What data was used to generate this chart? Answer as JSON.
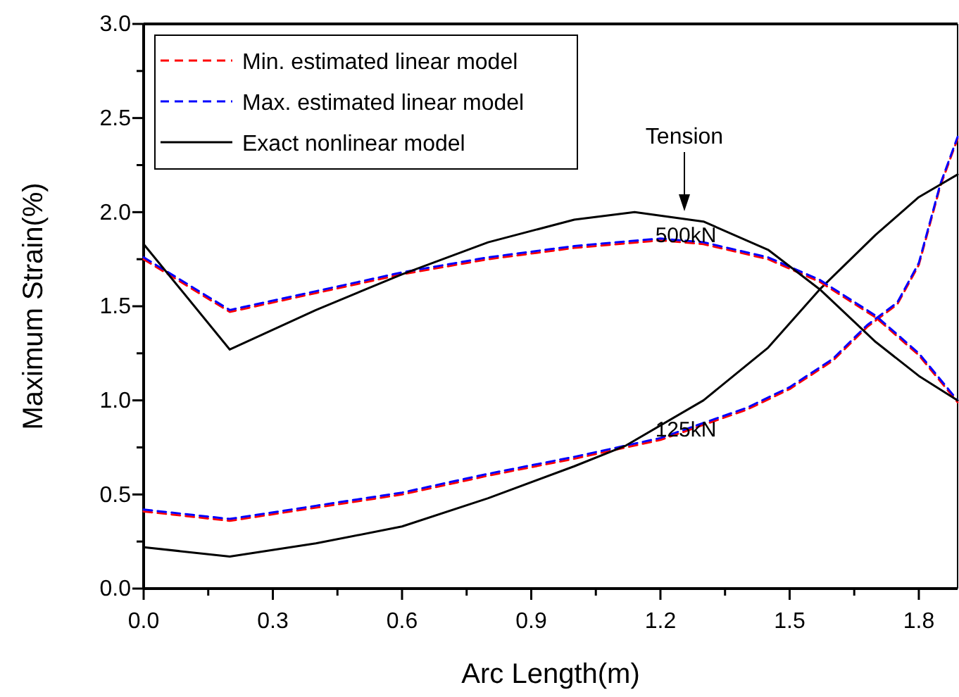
{
  "chart_data": {
    "type": "line",
    "xlabel": "Arc Length(m)",
    "ylabel": "Maximum Strain(%)",
    "xlim": [
      0,
      1.89
    ],
    "ylim": [
      0,
      3
    ],
    "xticks": [
      {
        "value": 0,
        "label": "0.0"
      },
      {
        "value": 0.15,
        "label": null
      },
      {
        "value": 0.3,
        "label": "0.3"
      },
      {
        "value": 0.45,
        "label": null
      },
      {
        "value": 0.6,
        "label": "0.6"
      },
      {
        "value": 0.75,
        "label": null
      },
      {
        "value": 0.9,
        "label": "0.9"
      },
      {
        "value": 1.05,
        "label": null
      },
      {
        "value": 1.2,
        "label": "1.2"
      },
      {
        "value": 1.35,
        "label": null
      },
      {
        "value": 1.5,
        "label": "1.5"
      },
      {
        "value": 1.65,
        "label": null
      },
      {
        "value": 1.8,
        "label": "1.8"
      }
    ],
    "yticks": [
      {
        "value": 0,
        "label": "0.0"
      },
      {
        "value": 0.25,
        "label": null
      },
      {
        "value": 0.5,
        "label": "0.5"
      },
      {
        "value": 0.75,
        "label": null
      },
      {
        "value": 1,
        "label": "1.0"
      },
      {
        "value": 1.25,
        "label": null
      },
      {
        "value": 1.5,
        "label": "1.5"
      },
      {
        "value": 1.75,
        "label": null
      },
      {
        "value": 2,
        "label": "2.0"
      },
      {
        "value": 2.25,
        "label": null
      },
      {
        "value": 2.5,
        "label": "2.5"
      },
      {
        "value": 2.75,
        "label": null
      },
      {
        "value": 3,
        "label": "3.0"
      }
    ],
    "legend": "top left",
    "grid": false,
    "marker": "none",
    "series": [
      {
        "name": "Min. estimated linear model",
        "color": "#ff0000",
        "line_style": "dashed",
        "x": [
          0,
          0.2,
          0.4,
          0.6,
          0.8,
          1.0,
          1.2,
          1.4,
          1.5,
          1.6,
          1.68,
          1.75,
          1.8,
          1.85,
          1.89
        ],
        "values": [
          0.41,
          0.36,
          0.43,
          0.5,
          0.6,
          0.69,
          0.79,
          0.95,
          1.06,
          1.21,
          1.39,
          1.51,
          1.72,
          2.14,
          2.39
        ]
      },
      {
        "name": "Max. estimated linear model",
        "color": "#0000ff",
        "line_style": "dashed",
        "x": [
          0,
          0.2,
          0.4,
          0.6,
          0.8,
          1.0,
          1.2,
          1.4,
          1.5,
          1.6,
          1.68,
          1.75,
          1.8,
          1.85,
          1.89
        ],
        "values": [
          0.42,
          0.37,
          0.44,
          0.51,
          0.61,
          0.7,
          0.8,
          0.96,
          1.07,
          1.22,
          1.4,
          1.52,
          1.73,
          2.15,
          2.4
        ]
      },
      {
        "name": "Exact nonlinear model",
        "color": "#000000",
        "line_style": "solid",
        "x": [
          0,
          0.2,
          0.4,
          0.6,
          0.8,
          1.0,
          1.12,
          1.3,
          1.45,
          1.57,
          1.7,
          1.8,
          1.89
        ],
        "values": [
          0.22,
          0.17,
          0.24,
          0.33,
          0.48,
          0.65,
          0.76,
          1.0,
          1.28,
          1.59,
          1.88,
          2.08,
          2.2
        ]
      },
      {
        "color": "#ff0000",
        "line_style": "dashed",
        "x": [
          0,
          0.2,
          0.4,
          0.6,
          0.8,
          1.0,
          1.2,
          1.3,
          1.45,
          1.57,
          1.7,
          1.8,
          1.89
        ],
        "values": [
          1.75,
          1.47,
          1.57,
          1.67,
          1.75,
          1.81,
          1.85,
          1.83,
          1.75,
          1.63,
          1.44,
          1.24,
          0.99
        ]
      },
      {
        "color": "#0000ff",
        "line_style": "dashed",
        "x": [
          0,
          0.2,
          0.4,
          0.6,
          0.8,
          1.0,
          1.2,
          1.3,
          1.45,
          1.57,
          1.7,
          1.8,
          1.89
        ],
        "values": [
          1.76,
          1.48,
          1.58,
          1.68,
          1.76,
          1.82,
          1.86,
          1.84,
          1.76,
          1.64,
          1.45,
          1.25,
          1.0
        ]
      },
      {
        "color": "#000000",
        "line_style": "solid",
        "x": [
          0,
          0.2,
          0.4,
          0.6,
          0.8,
          1.0,
          1.14,
          1.3,
          1.45,
          1.57,
          1.7,
          1.8,
          1.89
        ],
        "values": [
          1.83,
          1.27,
          1.48,
          1.67,
          1.84,
          1.96,
          2.0,
          1.95,
          1.8,
          1.59,
          1.31,
          1.13,
          1.0
        ]
      }
    ],
    "annotations": [
      "Tension",
      "500kN",
      "125kN"
    ]
  }
}
